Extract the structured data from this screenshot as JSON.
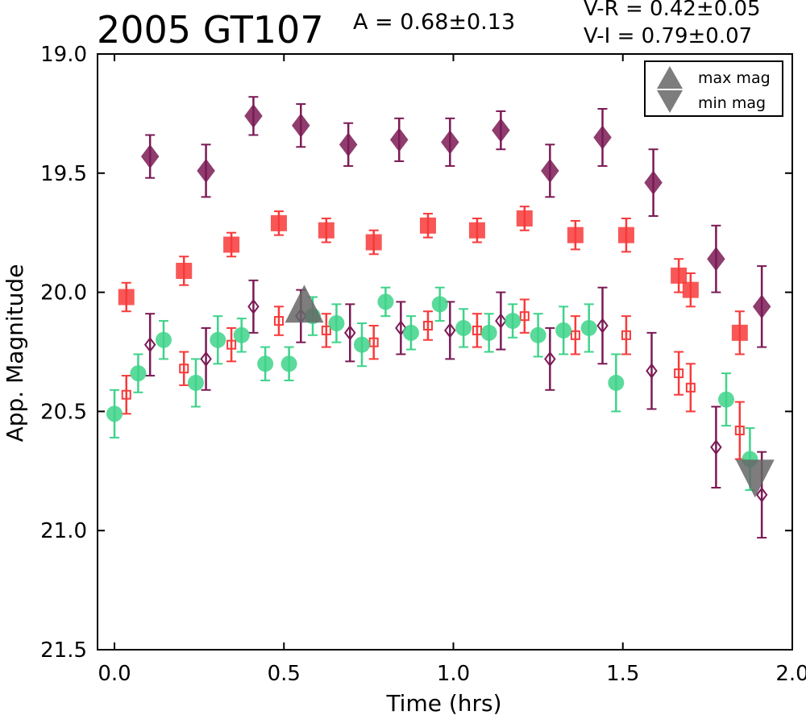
{
  "chart_data": {
    "type": "scatter",
    "title": "2005 GT107",
    "amplitude_label": "A  = 0.68±0.13",
    "color_labels": [
      "V-R = 0.42±0.05",
      "V-I  = 0.79±0.07"
    ],
    "xlabel": "Time (hrs)",
    "ylabel": "App. Magnitude",
    "xlim": [
      -0.05,
      2.0
    ],
    "ylim": [
      21.5,
      19.0
    ],
    "y_inverted": true,
    "xticks": [
      "0.0",
      "0.5",
      "1.0",
      "1.5",
      "2.0"
    ],
    "yticks": [
      "19.0",
      "19.5",
      "20.0",
      "20.5",
      "21.0",
      "21.5"
    ],
    "grid": false,
    "legend_position": "top-right",
    "legend": [
      {
        "label": "max mag",
        "marker": "triangle-up",
        "color": "#666666"
      },
      {
        "label": "min mag",
        "marker": "triangle-down",
        "color": "#666666"
      }
    ],
    "series": [
      {
        "marker": "diamond",
        "filled": true,
        "color": "#7b1a55",
        "points": [
          [
            0.105,
            19.43,
            0.09
          ],
          [
            0.27,
            19.49,
            0.11
          ],
          [
            0.41,
            19.26,
            0.08
          ],
          [
            0.55,
            19.3,
            0.09
          ],
          [
            0.69,
            19.38,
            0.09
          ],
          [
            0.84,
            19.36,
            0.09
          ],
          [
            0.99,
            19.37,
            0.1
          ],
          [
            1.14,
            19.32,
            0.08
          ],
          [
            1.285,
            19.49,
            0.11
          ],
          [
            1.44,
            19.35,
            0.12
          ],
          [
            1.59,
            19.54,
            0.14
          ],
          [
            1.775,
            19.86,
            0.14
          ],
          [
            1.91,
            20.06,
            0.17
          ]
        ]
      },
      {
        "marker": "square",
        "filled": true,
        "color": "#f83a3a",
        "points": [
          [
            0.035,
            20.02,
            0.06
          ],
          [
            0.205,
            19.91,
            0.06
          ],
          [
            0.345,
            19.8,
            0.05
          ],
          [
            0.485,
            19.71,
            0.05
          ],
          [
            0.625,
            19.74,
            0.05
          ],
          [
            0.765,
            19.79,
            0.05
          ],
          [
            0.925,
            19.72,
            0.05
          ],
          [
            1.07,
            19.74,
            0.05
          ],
          [
            1.21,
            19.69,
            0.05
          ],
          [
            1.36,
            19.76,
            0.06
          ],
          [
            1.51,
            19.76,
            0.07
          ],
          [
            1.665,
            19.93,
            0.07
          ],
          [
            1.7,
            19.99,
            0.07
          ],
          [
            1.845,
            20.17,
            0.09
          ]
        ]
      },
      {
        "marker": "circle",
        "filled": true,
        "color": "#3ed38a",
        "points": [
          [
            0.0,
            20.51,
            0.1
          ],
          [
            0.07,
            20.34,
            0.08
          ],
          [
            0.145,
            20.2,
            0.08
          ],
          [
            0.24,
            20.38,
            0.1
          ],
          [
            0.305,
            20.2,
            0.1
          ],
          [
            0.375,
            20.18,
            0.07
          ],
          [
            0.445,
            20.3,
            0.07
          ],
          [
            0.515,
            20.3,
            0.07
          ],
          [
            0.585,
            20.1,
            0.08
          ],
          [
            0.655,
            20.13,
            0.08
          ],
          [
            0.73,
            20.22,
            0.09
          ],
          [
            0.8,
            20.04,
            0.06
          ],
          [
            0.875,
            20.17,
            0.07
          ],
          [
            0.96,
            20.05,
            0.07
          ],
          [
            1.03,
            20.15,
            0.08
          ],
          [
            1.105,
            20.17,
            0.08
          ],
          [
            1.175,
            20.12,
            0.07
          ],
          [
            1.25,
            20.18,
            0.09
          ],
          [
            1.325,
            20.16,
            0.1
          ],
          [
            1.4,
            20.15,
            0.1
          ],
          [
            1.48,
            20.38,
            0.12
          ],
          [
            1.805,
            20.45,
            0.11
          ],
          [
            1.875,
            20.7,
            0.13
          ]
        ]
      },
      {
        "marker": "diamond",
        "filled": false,
        "color": "#7b1a55",
        "points": [
          [
            0.105,
            20.22,
            0.13
          ],
          [
            0.27,
            20.28,
            0.13
          ],
          [
            0.41,
            20.06,
            0.11
          ],
          [
            0.55,
            20.1,
            0.11
          ],
          [
            0.695,
            20.17,
            0.12
          ],
          [
            0.845,
            20.15,
            0.11
          ],
          [
            0.99,
            20.16,
            0.12
          ],
          [
            1.14,
            20.12,
            0.12
          ],
          [
            1.285,
            20.28,
            0.13
          ],
          [
            1.44,
            20.14,
            0.16
          ],
          [
            1.585,
            20.33,
            0.16
          ],
          [
            1.775,
            20.65,
            0.17
          ],
          [
            1.91,
            20.85,
            0.18
          ]
        ]
      },
      {
        "marker": "square",
        "filled": false,
        "color": "#f83a3a",
        "points": [
          [
            0.035,
            20.43,
            0.08
          ],
          [
            0.205,
            20.32,
            0.07
          ],
          [
            0.345,
            20.22,
            0.07
          ],
          [
            0.485,
            20.12,
            0.06
          ],
          [
            0.625,
            20.16,
            0.07
          ],
          [
            0.765,
            20.21,
            0.07
          ],
          [
            0.925,
            20.14,
            0.06
          ],
          [
            1.07,
            20.16,
            0.07
          ],
          [
            1.21,
            20.1,
            0.07
          ],
          [
            1.36,
            20.18,
            0.08
          ],
          [
            1.51,
            20.18,
            0.08
          ],
          [
            1.665,
            20.34,
            0.09
          ],
          [
            1.7,
            20.4,
            0.1
          ],
          [
            1.845,
            20.58,
            0.12
          ]
        ]
      }
    ],
    "markers": [
      {
        "type": "max mag",
        "marker": "triangle-up",
        "x": 0.56,
        "y": 20.07,
        "color": "#666666"
      },
      {
        "type": "min mag",
        "marker": "triangle-down",
        "x": 1.89,
        "y": 20.76,
        "color": "#666666"
      }
    ]
  }
}
